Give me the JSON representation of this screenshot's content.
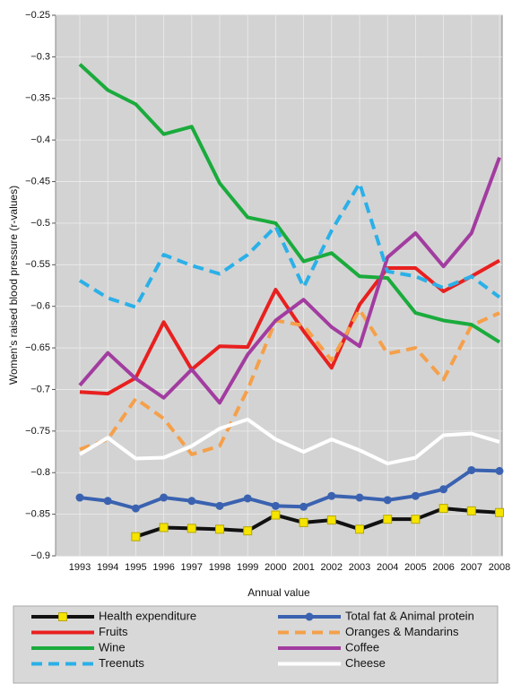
{
  "chart_data": {
    "type": "line",
    "y_label": "Women's raised blood pressure (r-values)",
    "x_label": "Annual value",
    "categories": [
      "1993",
      "1994",
      "1995",
      "1996",
      "1997",
      "1998",
      "1999",
      "2000",
      "2001",
      "2002",
      "2003",
      "2004",
      "2005",
      "2006",
      "2007",
      "2008"
    ],
    "ylim": [
      -0.9,
      -0.25
    ],
    "yticks": [
      {
        "value": -0.25,
        "label": "−0.25"
      },
      {
        "value": -0.3,
        "label": "−0.3"
      },
      {
        "value": -0.35,
        "label": "−0.35"
      },
      {
        "value": -0.4,
        "label": "−0.4"
      },
      {
        "value": -0.45,
        "label": "−0.45"
      },
      {
        "value": -0.5,
        "label": "−0.5"
      },
      {
        "value": -0.55,
        "label": "−0.55"
      },
      {
        "value": -0.6,
        "label": "−0.6"
      },
      {
        "value": -0.65,
        "label": "−0.65"
      },
      {
        "value": -0.7,
        "label": "−0.7"
      },
      {
        "value": -0.75,
        "label": "−0.75"
      },
      {
        "value": -0.8,
        "label": "−0.8"
      },
      {
        "value": -0.85,
        "label": "−0.85"
      },
      {
        "value": -0.9,
        "label": "−0.9"
      }
    ],
    "grid": true,
    "legend": "bottom",
    "series": [
      {
        "name": "Health expenditure",
        "color": "#111111",
        "marker": "square",
        "marker_color": "#f5e400",
        "dashed": false,
        "values": [
          null,
          null,
          -0.877,
          -0.866,
          -0.867,
          -0.868,
          -0.87,
          -0.851,
          -0.86,
          -0.857,
          -0.868,
          -0.856,
          -0.856,
          -0.843,
          -0.846,
          -0.848
        ]
      },
      {
        "name": "Total fat & Animal protein",
        "color": "#3a62b0",
        "marker": "circle",
        "marker_color": "#3a62b0",
        "dashed": false,
        "values": [
          -0.83,
          -0.834,
          -0.843,
          -0.83,
          -0.834,
          -0.84,
          -0.831,
          -0.84,
          -0.841,
          -0.828,
          -0.83,
          -0.833,
          -0.828,
          -0.82,
          -0.797,
          -0.798
        ]
      },
      {
        "name": "Fruits",
        "color": "#e8201f",
        "dashed": false,
        "values": [
          -0.703,
          -0.705,
          -0.686,
          -0.619,
          -0.676,
          -0.648,
          -0.649,
          -0.58,
          -0.63,
          -0.674,
          -0.598,
          -0.554,
          -0.554,
          -0.582,
          -0.564,
          -0.545
        ]
      },
      {
        "name": "Oranges & Mandarins",
        "color": "#f5a04a",
        "dashed": true,
        "values": [
          -0.772,
          -0.76,
          -0.711,
          -0.735,
          -0.778,
          -0.768,
          -0.7,
          -0.617,
          -0.623,
          -0.665,
          -0.604,
          -0.657,
          -0.65,
          -0.688,
          -0.623,
          -0.608
        ]
      },
      {
        "name": "Wine",
        "color": "#1aab3c",
        "dashed": false,
        "values": [
          -0.309,
          -0.34,
          -0.357,
          -0.393,
          -0.384,
          -0.452,
          -0.493,
          -0.5,
          -0.546,
          -0.536,
          -0.564,
          -0.566,
          -0.608,
          -0.617,
          -0.622,
          -0.643
        ]
      },
      {
        "name": "Coffee",
        "color": "#a23ca0",
        "dashed": false,
        "values": [
          -0.695,
          -0.656,
          -0.687,
          -0.71,
          -0.676,
          -0.716,
          -0.658,
          -0.617,
          -0.592,
          -0.625,
          -0.648,
          -0.541,
          -0.512,
          -0.552,
          -0.512,
          -0.421
        ]
      },
      {
        "name": "Treenuts",
        "color": "#2ab0e8",
        "dashed": true,
        "values": [
          -0.569,
          -0.59,
          -0.601,
          -0.538,
          -0.551,
          -0.561,
          -0.538,
          -0.504,
          -0.577,
          -0.509,
          -0.452,
          -0.558,
          -0.564,
          -0.578,
          -0.564,
          -0.589
        ]
      },
      {
        "name": "Cheese",
        "color": "#ffffff",
        "dashed": false,
        "values": [
          -0.778,
          -0.758,
          -0.783,
          -0.782,
          -0.768,
          -0.747,
          -0.736,
          -0.76,
          -0.775,
          -0.76,
          -0.773,
          -0.789,
          -0.782,
          -0.755,
          -0.753,
          -0.763
        ]
      }
    ]
  }
}
